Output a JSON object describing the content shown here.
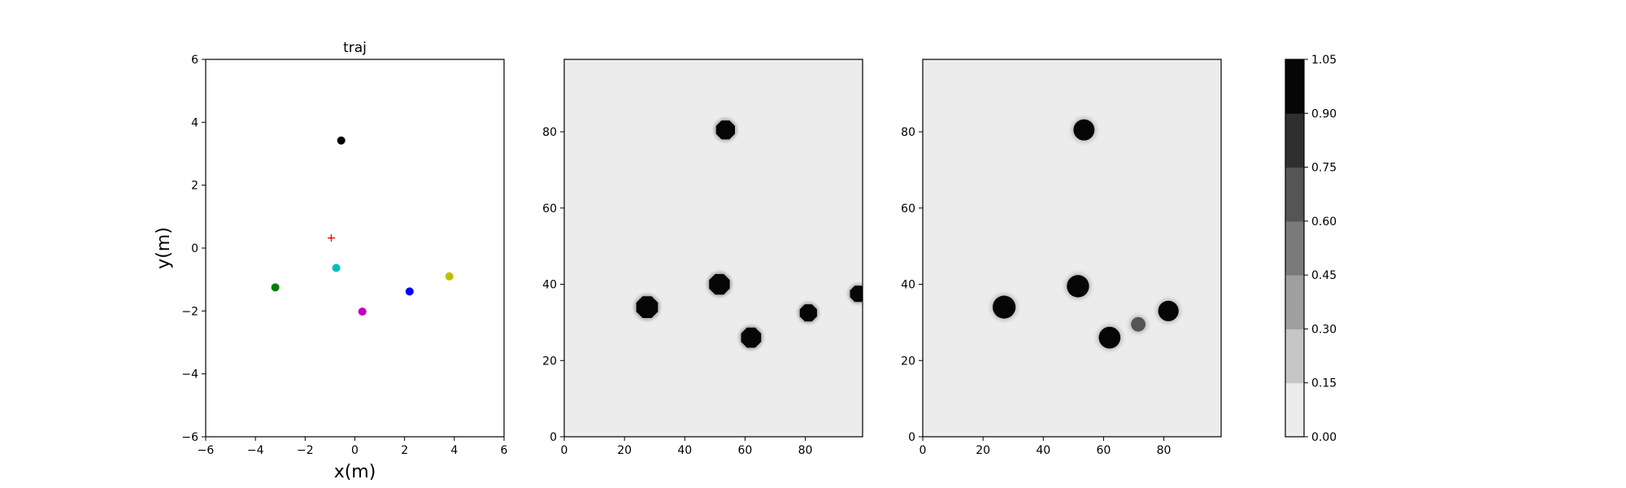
{
  "chart_data": [
    {
      "type": "scatter",
      "title": "traj",
      "xlabel": "x(m)",
      "ylabel": "y(m)",
      "xlim": [
        -6,
        6
      ],
      "ylim": [
        -6,
        6
      ],
      "xticks": [
        -6,
        -4,
        -2,
        0,
        2,
        4,
        6
      ],
      "yticks": [
        -6,
        -4,
        -2,
        0,
        2,
        4,
        6
      ],
      "xtick_labels": [
        "−6",
        "−4",
        "−2",
        "0",
        "2",
        "4",
        "6"
      ],
      "ytick_labels": [
        "−6",
        "−4",
        "−2",
        "0",
        "2",
        "4",
        "6"
      ],
      "grid": false,
      "points": [
        {
          "x": -0.55,
          "y": 3.42,
          "color": "#000000",
          "marker": "circle"
        },
        {
          "x": -3.2,
          "y": -1.25,
          "color": "#008000",
          "marker": "circle"
        },
        {
          "x": -0.75,
          "y": -0.63,
          "color": "#00bfbf",
          "marker": "circle"
        },
        {
          "x": 0.3,
          "y": -2.02,
          "color": "#bf00bf",
          "marker": "circle"
        },
        {
          "x": 2.2,
          "y": -1.38,
          "color": "#0000ff",
          "marker": "circle"
        },
        {
          "x": 3.8,
          "y": -0.9,
          "color": "#bfbf00",
          "marker": "circle"
        },
        {
          "x": -0.95,
          "y": 0.32,
          "color": "#ff0000",
          "marker": "plus"
        }
      ]
    },
    {
      "type": "heatmap",
      "xlim": [
        0,
        99
      ],
      "ylim": [
        0,
        99
      ],
      "xticks": [
        0,
        20,
        40,
        60,
        80
      ],
      "yticks": [
        0,
        20,
        40,
        60,
        80
      ],
      "xtick_labels": [
        "0",
        "20",
        "40",
        "60",
        "80"
      ],
      "ytick_labels": [
        "0",
        "20",
        "40",
        "60",
        "80"
      ],
      "background_value": 0.05,
      "blobs": [
        {
          "x": 53.5,
          "y": 80.5,
          "r": 3.4,
          "value": 1.0
        },
        {
          "x": 27.5,
          "y": 34.0,
          "r": 3.9,
          "value": 1.0
        },
        {
          "x": 51.5,
          "y": 40.0,
          "r": 3.7,
          "value": 1.0
        },
        {
          "x": 62.0,
          "y": 26.0,
          "r": 3.6,
          "value": 1.0
        },
        {
          "x": 81.0,
          "y": 32.5,
          "r": 3.1,
          "value": 1.0
        },
        {
          "x": 97.5,
          "y": 37.5,
          "r": 2.9,
          "value": 1.0
        }
      ]
    },
    {
      "type": "heatmap",
      "xlim": [
        0,
        99
      ],
      "ylim": [
        0,
        99
      ],
      "xticks": [
        0,
        20,
        40,
        60,
        80
      ],
      "yticks": [
        0,
        20,
        40,
        60,
        80
      ],
      "xtick_labels": [
        "0",
        "20",
        "40",
        "60",
        "80"
      ],
      "ytick_labels": [
        "0",
        "20",
        "40",
        "60",
        "80"
      ],
      "background_value": 0.05,
      "blobs": [
        {
          "x": 53.5,
          "y": 80.5,
          "r": 3.5,
          "value": 1.0
        },
        {
          "x": 27.0,
          "y": 34.0,
          "r": 3.8,
          "value": 1.0
        },
        {
          "x": 51.5,
          "y": 39.5,
          "r": 3.7,
          "value": 1.0
        },
        {
          "x": 62.0,
          "y": 26.0,
          "r": 3.6,
          "value": 1.0
        },
        {
          "x": 71.5,
          "y": 29.5,
          "r": 2.4,
          "value": 0.7
        },
        {
          "x": 81.5,
          "y": 33.0,
          "r": 3.4,
          "value": 1.0
        }
      ]
    }
  ],
  "colorbar": {
    "levels": [
      0.0,
      0.15,
      0.3,
      0.45,
      0.6,
      0.75,
      0.9,
      1.05
    ],
    "tick_labels": [
      "0.00",
      "0.15",
      "0.30",
      "0.45",
      "0.60",
      "0.75",
      "0.90",
      "1.05"
    ],
    "colors": [
      "#ececec",
      "#c6c6c6",
      "#9f9f9f",
      "#7a7a7a",
      "#555555",
      "#2f2f2f",
      "#060606"
    ]
  }
}
